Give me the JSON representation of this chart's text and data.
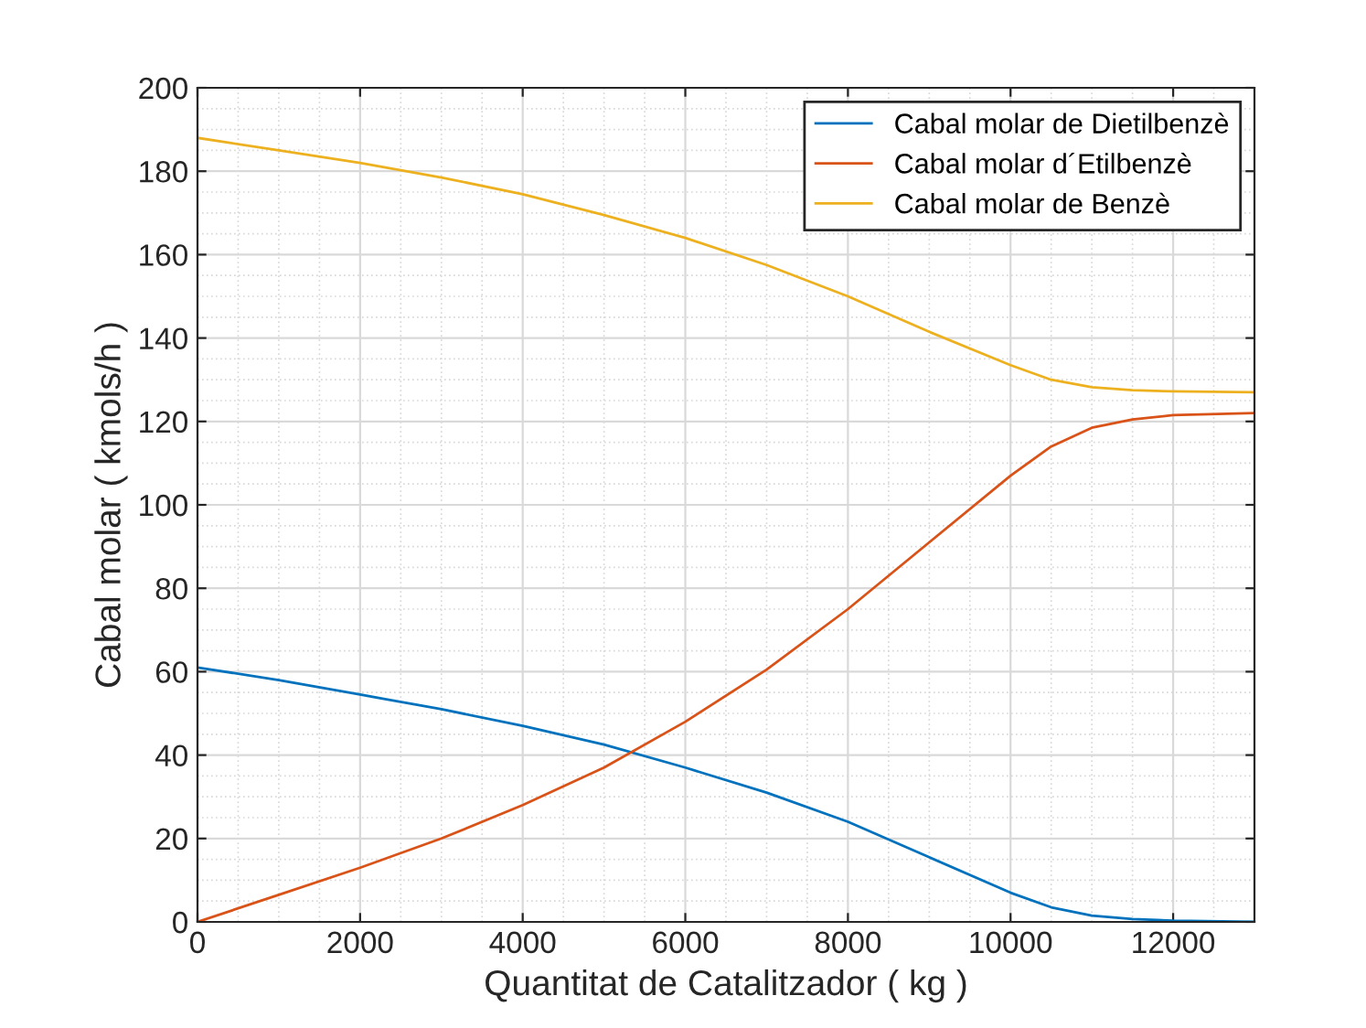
{
  "chart_data": {
    "type": "line",
    "xlabel": "Quantitat de Catalitzador ( kg )",
    "ylabel": "Cabal molar ( kmols/h )",
    "x": [
      0,
      1000,
      2000,
      3000,
      4000,
      5000,
      6000,
      7000,
      8000,
      9000,
      10000,
      10500,
      11000,
      11500,
      12000,
      13000
    ],
    "series": [
      {
        "name": "Cabal molar de Dietilbenzè",
        "color": "#0072bd",
        "values": [
          61,
          58,
          54.5,
          51,
          47,
          42.5,
          37,
          31,
          24,
          15.5,
          7,
          3.5,
          1.5,
          0.7,
          0.3,
          0
        ]
      },
      {
        "name": "Cabal molar d´Etilbenzè",
        "color": "#d95319",
        "values": [
          0,
          6.5,
          13,
          20,
          28,
          37,
          48,
          60.5,
          75,
          91,
          107,
          114,
          118.5,
          120.5,
          121.5,
          122
        ]
      },
      {
        "name": "Cabal molar de Benzè",
        "color": "#edb120",
        "values": [
          188,
          185,
          182,
          178.5,
          174.5,
          169.5,
          164,
          157.5,
          150,
          141.5,
          133.5,
          130,
          128.2,
          127.5,
          127.2,
          127
        ]
      }
    ],
    "xlim": [
      0,
      13000
    ],
    "xticks": [
      0,
      2000,
      4000,
      6000,
      8000,
      10000,
      12000
    ],
    "ylim": [
      0,
      200
    ],
    "yticks": [
      0,
      20,
      40,
      60,
      80,
      100,
      120,
      140,
      160,
      180,
      200
    ],
    "grid": true,
    "legend": "top right"
  }
}
